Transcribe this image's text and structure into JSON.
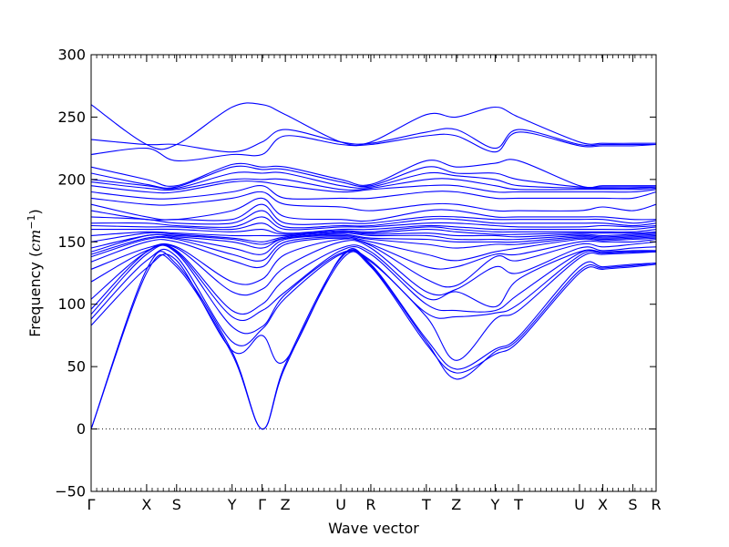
{
  "chart_data": {
    "type": "line",
    "title": "",
    "xlabel": "Wave vector",
    "ylabel": "Frequency",
    "ylabel_unit": "cm",
    "ylabel_unit_exp": "−1",
    "ylim": [
      -50,
      300
    ],
    "yticks": [
      -50,
      0,
      50,
      100,
      150,
      200,
      250,
      300
    ],
    "grid": false,
    "line_color": "#0000ff",
    "zero_line_color": "#000000",
    "high_symmetry_points": [
      {
        "label": "Γ",
        "x": 0.0
      },
      {
        "label": "X",
        "x": 0.5
      },
      {
        "label": "S",
        "x": 0.77
      },
      {
        "label": "Y",
        "x": 1.27
      },
      {
        "label": "Γ",
        "x": 1.54
      },
      {
        "label": "Z",
        "x": 1.75
      },
      {
        "label": "U",
        "x": 2.25
      },
      {
        "label": "R",
        "x": 2.52
      },
      {
        "label": "T",
        "x": 3.02
      },
      {
        "label": "Z",
        "x": 3.29
      },
      {
        "label": "Y",
        "x": 3.64
      },
      {
        "label": "T",
        "x": 3.85
      },
      {
        "label": "U",
        "x": 4.4
      },
      {
        "label": "X",
        "x": 4.61
      },
      {
        "label": "S",
        "x": 4.88
      },
      {
        "label": "R",
        "x": 5.09
      }
    ],
    "xlim": [
      0,
      5.09
    ],
    "x": [
      0.0,
      0.5,
      0.77,
      1.27,
      1.54,
      1.75,
      2.25,
      2.52,
      3.02,
      3.29,
      3.64,
      3.85,
      4.4,
      4.61,
      4.88,
      5.09
    ],
    "series": [
      {
        "values": [
          0,
          125,
          130,
          60,
          0,
          50,
          135,
          130,
          68,
          45,
          60,
          70,
          125,
          128,
          130,
          132
        ]
      },
      {
        "values": [
          0,
          128,
          132,
          62,
          0,
          52,
          137,
          131,
          70,
          40,
          62,
          72,
          127,
          129,
          131,
          133
        ]
      },
      {
        "values": [
          83,
          129,
          135,
          63,
          75,
          55,
          138,
          132,
          72,
          48,
          64,
          74,
          130,
          130,
          132,
          133
        ]
      },
      {
        "values": [
          88,
          135,
          138,
          70,
          80,
          105,
          140,
          134,
          90,
          55,
          88,
          95,
          137,
          140,
          141,
          142
        ]
      },
      {
        "values": [
          92,
          140,
          141,
          82,
          82,
          108,
          141,
          135,
          93,
          90,
          93,
          100,
          139,
          141,
          142,
          142
        ]
      },
      {
        "values": [
          96,
          142,
          142,
          90,
          95,
          110,
          143,
          140,
          100,
          95,
          95,
          108,
          141,
          141,
          142,
          143
        ]
      },
      {
        "values": [
          104,
          142,
          143,
          95,
          100,
          120,
          145,
          142,
          105,
          110,
          98,
          120,
          142,
          142,
          143,
          143
        ]
      },
      {
        "values": [
          118,
          143,
          145,
          110,
          112,
          130,
          150,
          145,
          110,
          112,
          130,
          125,
          145,
          143,
          145,
          146
        ]
      },
      {
        "values": [
          128,
          145,
          146,
          118,
          120,
          140,
          152,
          147,
          120,
          115,
          138,
          135,
          148,
          146,
          148,
          150
        ]
      },
      {
        "values": [
          134,
          150,
          150,
          135,
          130,
          148,
          153,
          148,
          130,
          130,
          140,
          140,
          150,
          150,
          150,
          152
        ]
      },
      {
        "values": [
          138,
          152,
          152,
          140,
          135,
          150,
          154,
          150,
          140,
          135,
          142,
          145,
          152,
          151,
          152,
          153
        ]
      },
      {
        "values": [
          140,
          153,
          153,
          145,
          140,
          152,
          155,
          152,
          148,
          145,
          148,
          148,
          153,
          152,
          153,
          154
        ]
      },
      {
        "values": [
          142,
          155,
          154,
          150,
          145,
          153,
          156,
          153,
          152,
          150,
          150,
          150,
          154,
          153,
          154,
          155
        ]
      },
      {
        "values": [
          145,
          155,
          155,
          152,
          148,
          153,
          157,
          155,
          155,
          152,
          152,
          152,
          155,
          154,
          155,
          156
        ]
      },
      {
        "values": [
          150,
          157,
          156,
          153,
          150,
          154,
          158,
          156,
          157,
          155,
          155,
          154,
          156,
          155,
          156,
          157
        ]
      },
      {
        "values": [
          155,
          158,
          157,
          155,
          155,
          155,
          158,
          157,
          160,
          158,
          156,
          156,
          157,
          157,
          157,
          158
        ]
      },
      {
        "values": [
          160,
          160,
          160,
          158,
          160,
          156,
          159,
          158,
          162,
          160,
          158,
          158,
          158,
          158,
          158,
          160
        ]
      },
      {
        "values": [
          163,
          162,
          162,
          160,
          165,
          157,
          160,
          160,
          163,
          162,
          160,
          160,
          160,
          160,
          160,
          162
        ]
      },
      {
        "values": [
          165,
          165,
          163,
          162,
          170,
          160,
          162,
          162,
          165,
          165,
          163,
          162,
          162,
          163,
          162,
          163
        ]
      },
      {
        "values": [
          170,
          168,
          165,
          165,
          175,
          162,
          163,
          163,
          168,
          168,
          165,
          165,
          165,
          165,
          163,
          165
        ]
      },
      {
        "values": [
          175,
          168,
          168,
          168,
          180,
          165,
          165,
          165,
          170,
          170,
          168,
          168,
          168,
          168,
          165,
          167
        ]
      },
      {
        "values": [
          180,
          170,
          168,
          175,
          185,
          170,
          168,
          167,
          175,
          175,
          170,
          170,
          170,
          170,
          168,
          168
        ]
      },
      {
        "values": [
          185,
          180,
          180,
          185,
          190,
          180,
          178,
          175,
          180,
          180,
          175,
          175,
          175,
          178,
          175,
          180
        ]
      },
      {
        "values": [
          190,
          185,
          185,
          190,
          195,
          185,
          185,
          185,
          190,
          190,
          185,
          185,
          185,
          185,
          185,
          190
        ]
      },
      {
        "values": [
          195,
          190,
          190,
          198,
          198,
          195,
          190,
          192,
          195,
          195,
          190,
          190,
          190,
          190,
          190,
          192
        ]
      },
      {
        "values": [
          198,
          193,
          192,
          200,
          200,
          200,
          192,
          193,
          200,
          200,
          195,
          192,
          192,
          192,
          192,
          193
        ]
      },
      {
        "values": [
          200,
          195,
          193,
          205,
          205,
          205,
          195,
          194,
          205,
          203,
          200,
          195,
          193,
          193,
          193,
          194
        ]
      },
      {
        "values": [
          205,
          196,
          194,
          210,
          208,
          208,
          198,
          195,
          210,
          205,
          205,
          200,
          194,
          194,
          194,
          194
        ]
      },
      {
        "values": [
          210,
          200,
          195,
          212,
          210,
          210,
          200,
          196,
          215,
          210,
          213,
          215,
          195,
          195,
          195,
          195
        ]
      },
      {
        "values": [
          220,
          225,
          215,
          220,
          220,
          235,
          228,
          228,
          235,
          235,
          222,
          238,
          227,
          227,
          227,
          228
        ]
      },
      {
        "values": [
          232,
          228,
          228,
          222,
          230,
          240,
          230,
          229,
          238,
          240,
          225,
          240,
          228,
          228,
          228,
          228
        ]
      },
      {
        "values": [
          260,
          228,
          228,
          258,
          260,
          252,
          230,
          230,
          252,
          250,
          258,
          250,
          230,
          229,
          229,
          229
        ]
      }
    ]
  }
}
